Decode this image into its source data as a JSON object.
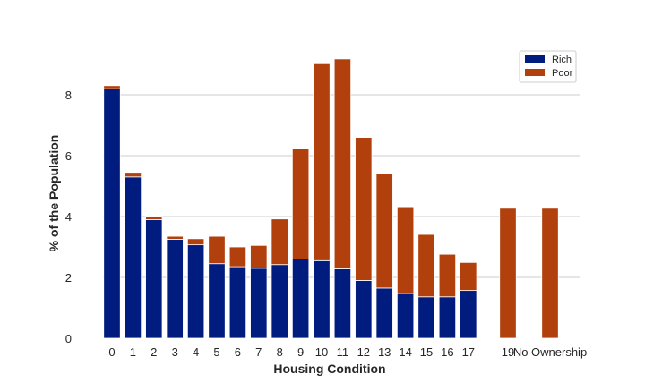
{
  "chart_data": {
    "type": "bar",
    "stacked": true,
    "categories": [
      "0",
      "1",
      "2",
      "3",
      "4",
      "5",
      "6",
      "7",
      "8",
      "9",
      "10",
      "11",
      "12",
      "13",
      "14",
      "15",
      "16",
      "17",
      "19",
      "No Ownership"
    ],
    "series": [
      {
        "name": "Rich",
        "color": "#001c7f",
        "values": [
          8.2,
          5.3,
          3.9,
          3.25,
          3.07,
          2.45,
          2.35,
          2.3,
          2.42,
          2.6,
          2.55,
          2.28,
          1.9,
          1.65,
          1.47,
          1.36,
          1.36,
          1.57,
          0,
          0
        ]
      },
      {
        "name": "Poor",
        "color": "#b1400d",
        "values": [
          0.1,
          0.15,
          0.1,
          0.1,
          0.2,
          0.9,
          0.65,
          0.75,
          1.5,
          3.62,
          6.5,
          6.9,
          4.7,
          3.75,
          2.85,
          2.05,
          1.4,
          0.92,
          4.27,
          4.27
        ]
      }
    ],
    "xlabel": "Housing Condition",
    "ylabel": "% of the Population",
    "yticks": [
      0,
      2,
      4,
      6,
      8
    ],
    "ylim": [
      0,
      9.5
    ],
    "grid": "horizontal",
    "legend": "top-right"
  }
}
